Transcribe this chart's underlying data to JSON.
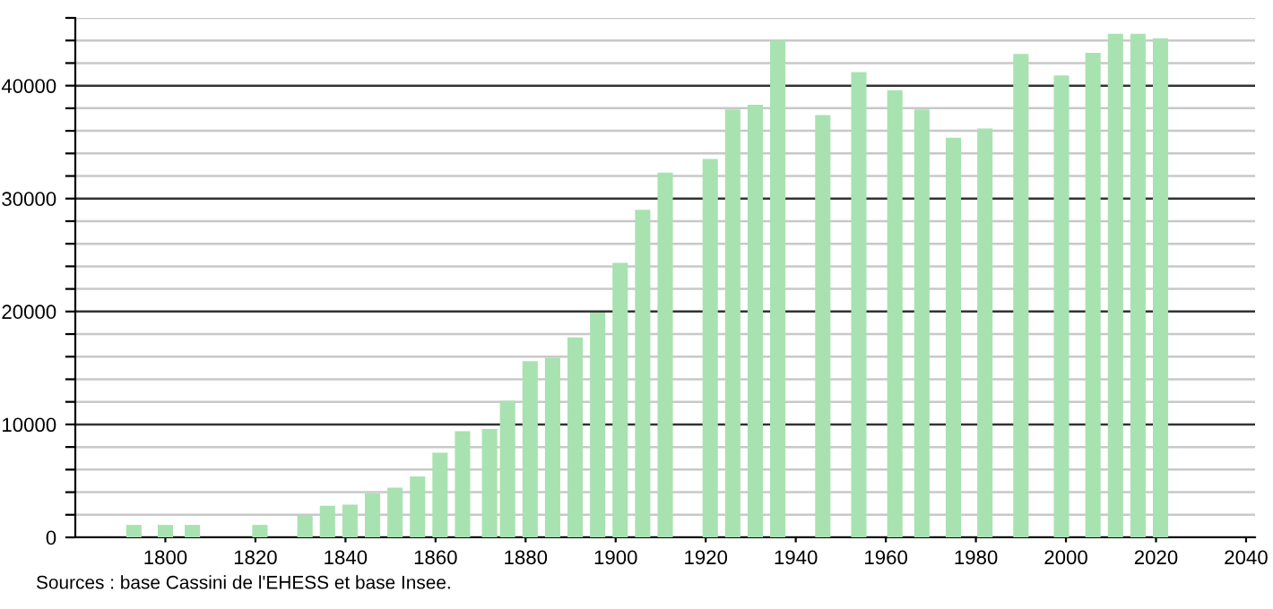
{
  "chart_data": {
    "type": "bar",
    "color": "#a8e2b0",
    "x": [
      1793,
      1800,
      1806,
      1821,
      1831,
      1836,
      1841,
      1846,
      1851,
      1856,
      1861,
      1866,
      1872,
      1876,
      1881,
      1886,
      1891,
      1896,
      1901,
      1906,
      1911,
      1921,
      1926,
      1931,
      1936,
      1946,
      1954,
      1962,
      1968,
      1975,
      1982,
      1990,
      1999,
      2006,
      2011,
      2016,
      2021
    ],
    "values": [
      1100,
      1100,
      1100,
      1100,
      1900,
      2800,
      2900,
      3900,
      4400,
      5400,
      7500,
      9400,
      9600,
      12100,
      15600,
      15900,
      17700,
      19900,
      24300,
      29000,
      32300,
      33500,
      37900,
      38300,
      44000,
      37400,
      41200,
      39600,
      37900,
      35400,
      36200,
      42800,
      40900,
      42900,
      44600,
      44600,
      44200
    ],
    "xlim": [
      1780,
      2042
    ],
    "xticks": [
      1800,
      1820,
      1840,
      1860,
      1880,
      1900,
      1920,
      1940,
      1960,
      1980,
      2000,
      2020,
      2040
    ],
    "ylim": [
      0,
      46000
    ],
    "yticks": [
      0,
      {
        "value": 2000,
        "label": null
      },
      {
        "value": 4000,
        "label": null
      },
      {
        "value": 6000,
        "label": null
      },
      {
        "value": 8000,
        "label": null
      },
      10000,
      {
        "value": 12000,
        "label": null
      },
      {
        "value": 14000,
        "label": null
      },
      {
        "value": 16000,
        "label": null
      },
      {
        "value": 18000,
        "label": null
      },
      20000,
      {
        "value": 22000,
        "label": null
      },
      {
        "value": 24000,
        "label": null
      },
      {
        "value": 26000,
        "label": null
      },
      {
        "value": 28000,
        "label": null
      },
      30000,
      {
        "value": 32000,
        "label": null
      },
      {
        "value": 34000,
        "label": null
      },
      {
        "value": 36000,
        "label": null
      },
      {
        "value": 38000,
        "label": null
      },
      40000,
      {
        "value": 42000,
        "label": null
      },
      {
        "value": 44000,
        "label": null
      },
      {
        "value": 46000,
        "label": null
      }
    ],
    "grid": "y",
    "annotations": [
      "Sources : base Cassini de l'EHESS et base Insee."
    ]
  }
}
